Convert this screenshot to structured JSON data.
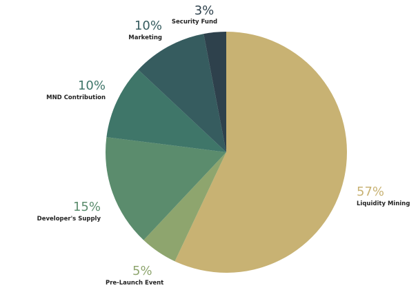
{
  "chart_data": {
    "type": "pie",
    "title": "",
    "start_angle_deg": 0,
    "direction": "clockwise",
    "slices": [
      {
        "label": "Liquidity Mining",
        "percent_label": "57%",
        "value": 57,
        "color": "#c8b273"
      },
      {
        "label": "Pre-Launch Event",
        "percent_label": "5%",
        "value": 5,
        "color": "#8ea56e"
      },
      {
        "label": "Developer's Supply",
        "percent_label": "15%",
        "value": 15,
        "color": "#5b8c6d"
      },
      {
        "label": "MND Contribution",
        "percent_label": "10%",
        "value": 10,
        "color": "#3f7669"
      },
      {
        "label": "Marketing",
        "percent_label": "10%",
        "value": 10,
        "color": "#365c5f"
      },
      {
        "label": "Security Fund",
        "percent_label": "3%",
        "value": 3,
        "color": "#2e414c"
      }
    ]
  }
}
